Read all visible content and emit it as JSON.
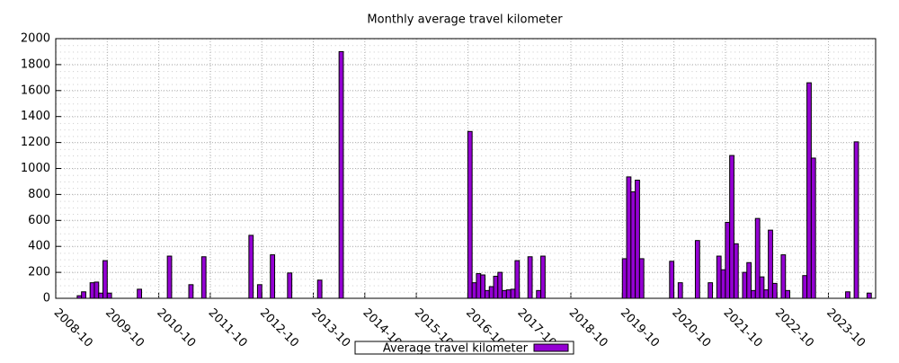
{
  "chart_data": {
    "type": "bar",
    "title": "Monthly average travel kilometer",
    "categories": [
      "2008-10",
      null,
      null,
      null,
      null,
      null,
      null,
      null,
      null,
      null,
      null,
      null,
      "2009-10",
      null,
      null,
      null,
      null,
      null,
      null,
      null,
      null,
      null,
      null,
      null,
      "2010-10",
      null,
      null,
      null,
      null,
      null,
      null,
      null,
      null,
      null,
      null,
      null,
      "2011-10",
      null,
      null,
      null,
      null,
      null,
      null,
      null,
      null,
      null,
      null,
      null,
      "2012-10",
      null,
      null,
      null,
      null,
      null,
      null,
      null,
      null,
      null,
      null,
      null,
      "2013-10",
      null,
      null,
      null,
      null,
      null,
      null,
      null,
      null,
      null,
      null,
      null,
      "2014-10",
      null,
      null,
      null,
      null,
      null,
      null,
      null,
      null,
      null,
      null,
      null,
      "2015-10",
      null,
      null,
      null,
      null,
      null,
      null,
      null,
      null,
      null,
      null,
      null,
      "2016-10",
      null,
      null,
      null,
      null,
      null,
      null,
      null,
      null,
      null,
      null,
      null,
      "2017-10",
      null,
      null,
      null,
      null,
      null,
      null,
      null,
      null,
      null,
      null,
      null,
      "2018-10",
      null,
      null,
      null,
      null,
      null,
      null,
      null,
      null,
      null,
      null,
      null,
      "2019-10",
      null,
      null,
      null,
      null,
      null,
      null,
      null,
      null,
      null,
      null,
      null,
      "2020-10",
      null,
      null,
      null,
      null,
      null,
      null,
      null,
      null,
      null,
      null,
      null,
      "2021-10",
      null,
      null,
      null,
      null,
      null,
      null,
      null,
      null,
      null,
      null,
      null,
      "2022-10",
      null,
      null,
      null,
      null,
      null,
      null,
      null,
      null,
      null,
      null,
      null,
      "2023-10",
      null,
      null,
      null,
      null,
      null,
      null,
      null,
      null,
      null,
      null
    ],
    "series": [
      {
        "name": "Average travel kilometer",
        "color": "#9400d3",
        "values": [
          0,
          0,
          0,
          0,
          0,
          20,
          50,
          0,
          120,
          125,
          40,
          290,
          40,
          0,
          0,
          0,
          0,
          0,
          0,
          70,
          0,
          0,
          0,
          0,
          0,
          0,
          325,
          0,
          0,
          0,
          0,
          105,
          0,
          0,
          320,
          0,
          0,
          0,
          0,
          0,
          0,
          0,
          0,
          0,
          0,
          485,
          0,
          105,
          0,
          0,
          335,
          0,
          0,
          0,
          195,
          0,
          0,
          0,
          0,
          0,
          0,
          140,
          0,
          0,
          0,
          0,
          1900,
          0,
          0,
          0,
          0,
          0,
          0,
          0,
          0,
          0,
          0,
          0,
          0,
          0,
          0,
          0,
          0,
          0,
          0,
          0,
          0,
          0,
          0,
          0,
          0,
          0,
          0,
          0,
          0,
          0,
          1285,
          120,
          190,
          180,
          60,
          90,
          170,
          200,
          60,
          65,
          70,
          290,
          0,
          0,
          320,
          0,
          60,
          325,
          0,
          0,
          0,
          0,
          0,
          0,
          0,
          0,
          0,
          0,
          0,
          0,
          0,
          0,
          0,
          0,
          0,
          0,
          305,
          935,
          820,
          910,
          305,
          0,
          0,
          0,
          0,
          0,
          0,
          285,
          0,
          120,
          0,
          0,
          0,
          445,
          0,
          0,
          120,
          0,
          325,
          220,
          585,
          1100,
          420,
          0,
          200,
          275,
          60,
          615,
          165,
          65,
          525,
          115,
          0,
          335,
          60,
          0,
          0,
          0,
          175,
          1660,
          1080,
          0,
          0,
          0,
          0,
          0,
          0,
          0,
          50,
          0,
          1205,
          0,
          0,
          40,
          0
        ]
      }
    ],
    "ylim": [
      0,
      2000
    ],
    "yticks": [
      0,
      200,
      400,
      600,
      800,
      1000,
      1200,
      1400,
      1600,
      1800,
      2000
    ],
    "grid": true
  }
}
